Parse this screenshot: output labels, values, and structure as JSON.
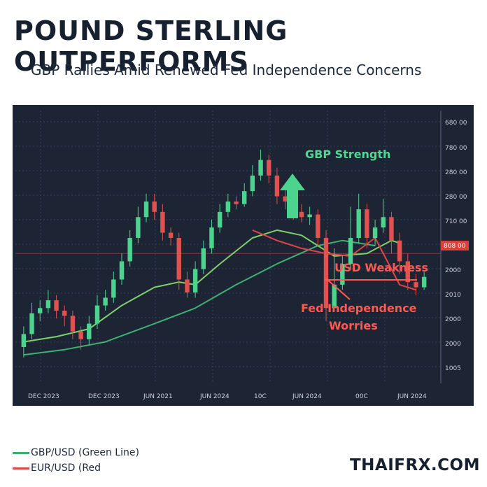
{
  "header": {
    "title": "POUND STERLING OUTPERFORMS",
    "subtitle": "GBP Rallies Amid Renewed Fed Independence Concerns"
  },
  "legend": {
    "items": [
      {
        "label": "GBP/USD (Green Line)",
        "color": "#3fae6a"
      },
      {
        "label": "EUR/USD (Red",
        "color": "#e04848"
      }
    ]
  },
  "brand": "THAIFRX.COM",
  "colors": {
    "panel_bg": "#1d2434",
    "grid": "#36405a",
    "tick_text": "#c9cfda",
    "up_candle": "#4cd48e",
    "down_candle": "#e0514f",
    "gbp_line": "#7fd06a",
    "eur_line": "#3fb072",
    "fed_line": "#e14545",
    "annotation_green": "#52d795",
    "annotation_red": "#ff5a52",
    "marker_label_bg": "#d9403c"
  },
  "chart_data": {
    "type": "candlestick",
    "title": "",
    "xlabel": "",
    "ylabel": "",
    "x_ticks": [
      "DEC 2023",
      "DEC 2023",
      "JUN 2021",
      "JUN 2024",
      "10C",
      "JUN 2024",
      "00C",
      "JUN 2024"
    ],
    "y_ticks": [
      "680 00",
      "780 00",
      "280 00",
      "280 00",
      "710 00",
      "808 00",
      "2000",
      "2010",
      "2000",
      "2000",
      "1005"
    ],
    "ylim": [
      0,
      10.5
    ],
    "grid": true,
    "marker_label": "808 00",
    "marker_value": 5.0,
    "candles": [
      {
        "o": 1.4,
        "c": 1.9,
        "h": 2.2,
        "l": 1.0
      },
      {
        "o": 1.9,
        "c": 2.7,
        "h": 3.1,
        "l": 1.7
      },
      {
        "o": 2.7,
        "c": 2.9,
        "h": 3.2,
        "l": 2.4
      },
      {
        "o": 2.9,
        "c": 3.2,
        "h": 3.6,
        "l": 2.7
      },
      {
        "o": 3.2,
        "c": 2.8,
        "h": 3.4,
        "l": 2.5
      },
      {
        "o": 2.8,
        "c": 2.6,
        "h": 3.0,
        "l": 2.2
      },
      {
        "o": 2.6,
        "c": 2.0,
        "h": 2.8,
        "l": 1.7
      },
      {
        "o": 2.0,
        "c": 1.7,
        "h": 2.2,
        "l": 1.3
      },
      {
        "o": 1.7,
        "c": 2.3,
        "h": 2.6,
        "l": 1.5
      },
      {
        "o": 2.3,
        "c": 3.0,
        "h": 3.4,
        "l": 2.1
      },
      {
        "o": 3.0,
        "c": 3.3,
        "h": 3.6,
        "l": 2.8
      },
      {
        "o": 3.3,
        "c": 4.0,
        "h": 4.3,
        "l": 3.1
      },
      {
        "o": 4.0,
        "c": 4.7,
        "h": 5.0,
        "l": 3.8
      },
      {
        "o": 4.7,
        "c": 5.6,
        "h": 5.9,
        "l": 4.5
      },
      {
        "o": 5.6,
        "c": 6.4,
        "h": 6.8,
        "l": 5.4
      },
      {
        "o": 6.4,
        "c": 7.0,
        "h": 7.3,
        "l": 6.2
      },
      {
        "o": 7.0,
        "c": 6.6,
        "h": 7.3,
        "l": 6.3
      },
      {
        "o": 6.6,
        "c": 5.8,
        "h": 6.9,
        "l": 5.5
      },
      {
        "o": 5.8,
        "c": 5.6,
        "h": 6.0,
        "l": 5.3
      },
      {
        "o": 5.6,
        "c": 4.0,
        "h": 5.8,
        "l": 3.6
      },
      {
        "o": 4.0,
        "c": 3.5,
        "h": 4.3,
        "l": 3.3
      },
      {
        "o": 3.5,
        "c": 4.4,
        "h": 4.7,
        "l": 3.3
      },
      {
        "o": 4.4,
        "c": 5.2,
        "h": 5.5,
        "l": 4.2
      },
      {
        "o": 5.2,
        "c": 6.0,
        "h": 6.3,
        "l": 5.0
      },
      {
        "o": 6.0,
        "c": 6.6,
        "h": 6.9,
        "l": 5.8
      },
      {
        "o": 6.6,
        "c": 7.0,
        "h": 7.3,
        "l": 6.4
      },
      {
        "o": 7.0,
        "c": 6.9,
        "h": 7.2,
        "l": 6.7
      },
      {
        "o": 6.9,
        "c": 7.4,
        "h": 7.7,
        "l": 6.8
      },
      {
        "o": 7.4,
        "c": 8.0,
        "h": 8.4,
        "l": 7.2
      },
      {
        "o": 8.0,
        "c": 8.6,
        "h": 9.0,
        "l": 7.8
      },
      {
        "o": 8.6,
        "c": 8.0,
        "h": 8.8,
        "l": 7.7
      },
      {
        "o": 8.0,
        "c": 7.2,
        "h": 8.3,
        "l": 6.9
      },
      {
        "o": 7.2,
        "c": 7.0,
        "h": 7.5,
        "l": 6.7
      },
      {
        "o": 7.0,
        "c": 6.6,
        "h": 7.3,
        "l": 6.3
      },
      {
        "o": 6.6,
        "c": 6.4,
        "h": 6.9,
        "l": 6.2
      },
      {
        "o": 6.4,
        "c": 6.5,
        "h": 6.8,
        "l": 6.1
      },
      {
        "o": 6.5,
        "c": 5.6,
        "h": 6.7,
        "l": 5.3
      },
      {
        "o": 5.6,
        "c": 2.9,
        "h": 5.9,
        "l": 2.4
      },
      {
        "o": 2.9,
        "c": 3.8,
        "h": 5.2,
        "l": 3.0
      },
      {
        "o": 3.8,
        "c": 4.6,
        "h": 4.9,
        "l": 3.6
      },
      {
        "o": 4.6,
        "c": 5.6,
        "h": 6.8,
        "l": 4.4
      },
      {
        "o": 5.6,
        "c": 6.7,
        "h": 7.3,
        "l": 5.4
      },
      {
        "o": 6.7,
        "c": 5.6,
        "h": 6.9,
        "l": 5.2
      },
      {
        "o": 5.6,
        "c": 6.0,
        "h": 6.3,
        "l": 5.3
      },
      {
        "o": 6.0,
        "c": 6.4,
        "h": 7.1,
        "l": 5.8
      },
      {
        "o": 6.4,
        "c": 5.5,
        "h": 6.6,
        "l": 5.0
      },
      {
        "o": 5.5,
        "c": 4.7,
        "h": 5.8,
        "l": 4.2
      },
      {
        "o": 4.7,
        "c": 3.9,
        "h": 5.0,
        "l": 3.6
      },
      {
        "o": 3.9,
        "c": 3.7,
        "h": 4.2,
        "l": 3.4
      },
      {
        "o": 3.7,
        "c": 4.1,
        "h": 4.3,
        "l": 3.6
      }
    ],
    "series": [
      {
        "name": "GBP/USD (Green Line)",
        "role": "short moving average",
        "points": [
          [
            0,
            1.6
          ],
          [
            4,
            1.8
          ],
          [
            8,
            2.1
          ],
          [
            12,
            3.0
          ],
          [
            16,
            3.7
          ],
          [
            19,
            3.9
          ],
          [
            21,
            3.8
          ],
          [
            24,
            4.6
          ],
          [
            28,
            5.6
          ],
          [
            31,
            5.9
          ],
          [
            34,
            5.7
          ],
          [
            38,
            4.9
          ],
          [
            42,
            5.0
          ],
          [
            45,
            5.5
          ],
          [
            46,
            5.4
          ]
        ]
      },
      {
        "name": "EUR/USD (Red",
        "role": "long moving average",
        "points": [
          [
            0,
            1.1
          ],
          [
            5,
            1.3
          ],
          [
            10,
            1.6
          ],
          [
            16,
            2.3
          ],
          [
            21,
            2.9
          ],
          [
            26,
            3.8
          ],
          [
            31,
            4.6
          ],
          [
            36,
            5.3
          ],
          [
            39,
            5.5
          ],
          [
            43,
            5.3
          ]
        ]
      },
      {
        "name": "",
        "role": "fed worries line",
        "points": [
          [
            28,
            5.9
          ],
          [
            31,
            5.5
          ],
          [
            34,
            5.2
          ],
          [
            37,
            5.0
          ],
          [
            40,
            4.9
          ],
          [
            43,
            5.6
          ],
          [
            46,
            3.8
          ],
          [
            48,
            3.6
          ]
        ]
      }
    ],
    "annotations": [
      {
        "text": "GBP Strength",
        "type": "up-arrow"
      },
      {
        "text": "USD Weakness",
        "type": "callout"
      },
      {
        "text": "Fed Independence",
        "type": "callout"
      },
      {
        "text": "Worries",
        "type": "callout"
      }
    ]
  }
}
